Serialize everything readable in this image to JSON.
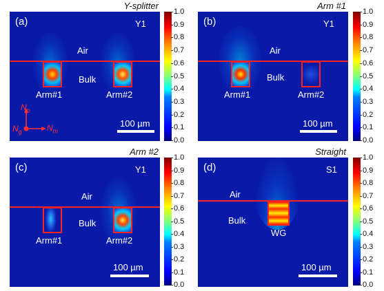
{
  "colorbar": {
    "ticks": [
      "1.0",
      "0.9",
      "0.8",
      "0.7",
      "0.6",
      "0.5",
      "0.4",
      "0.3",
      "0.2",
      "0.1",
      "0.0"
    ]
  },
  "colors": {
    "background": "#0a1aa8",
    "interface": "#ff2020"
  },
  "panels": [
    {
      "id": "a",
      "letter": "(a)",
      "title": "Y-splitter",
      "tag": "Y1",
      "air": "Air",
      "bulk": "Bulk",
      "arm1": "Arm#1",
      "arm2": "Arm#2",
      "scale": "100 µm",
      "axes": {
        "np": "N",
        "np_sub": "p",
        "ng": "N",
        "ng_sub": "g",
        "nm": "N",
        "nm_sub": "m"
      }
    },
    {
      "id": "b",
      "letter": "(b)",
      "title": "Arm #1",
      "tag": "Y1",
      "air": "Air",
      "bulk": "Bulk",
      "arm1": "Arm#1",
      "arm2": "Arm#2",
      "scale": "100 µm"
    },
    {
      "id": "c",
      "letter": "(c)",
      "title": "Arm #2",
      "tag": "Y1",
      "air": "Air",
      "bulk": "Bulk",
      "arm1": "Arm#1",
      "arm2": "Arm#2",
      "scale": "100 µm"
    },
    {
      "id": "d",
      "letter": "(d)",
      "title": "Straight",
      "tag": "S1",
      "air": "Air",
      "bulk": "Bulk",
      "wg": "WG",
      "scale": "100 µm"
    }
  ]
}
